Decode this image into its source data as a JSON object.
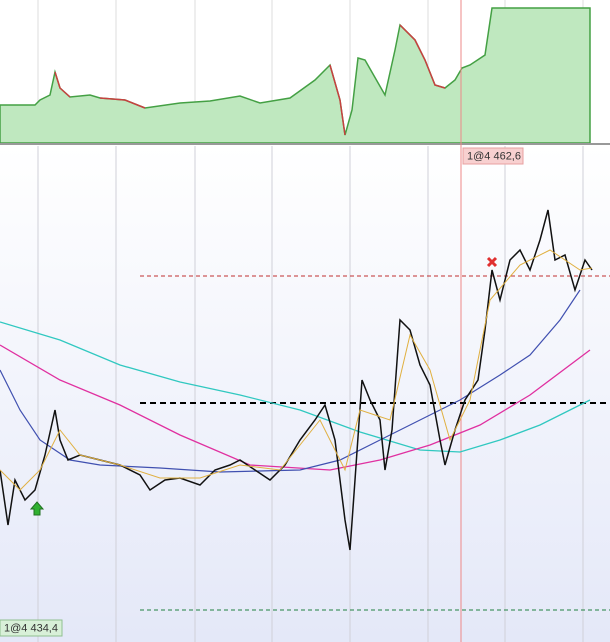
{
  "labels": {
    "entry": "1@4 462,6",
    "exit": "1@4 434,4"
  }
}
